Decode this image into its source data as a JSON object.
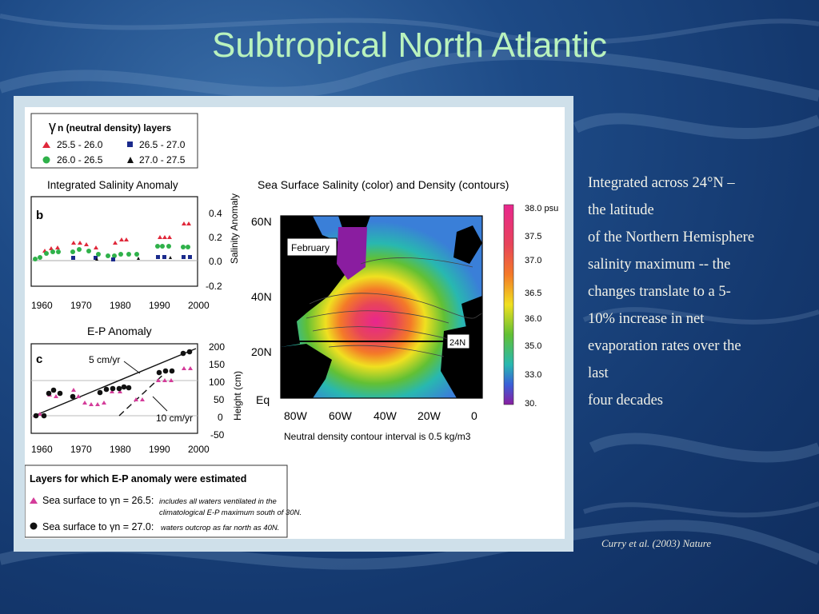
{
  "slide": {
    "title": "Subtropical North Atlantic",
    "side_text": {
      "l1": "Integrated across 24°N –",
      "l2": "the latitude",
      "l3": "of the Northern Hemisphere",
      "l4": "salinity maximum -- the",
      "l5": "changes translate to a 5-",
      "l6": "10% increase in net",
      "l7": "evaporation rates over the",
      "l8": "last",
      "l9": "four decades"
    },
    "citation": "Curry et al. (2003) Nature"
  },
  "figure": {
    "legend": {
      "gamma": "γ",
      "title": "n  (neutral density) layers",
      "items": [
        "25.5 - 26.0",
        "26.5 - 27.0",
        "26.0 - 26.5",
        "27.0 - 27.5"
      ],
      "colors": [
        "#e0283a",
        "#1a2a8c",
        "#2fb14a",
        "#111111"
      ]
    },
    "panel_b": {
      "title": "Integrated Salinity Anomaly",
      "label": "b",
      "yticks": [
        "0.4",
        "0.2",
        "0.0",
        "-0.2"
      ],
      "ylabel": "Salinity Anomaly",
      "xticks": [
        "1960",
        "1970",
        "1980",
        "1990",
        "2000"
      ]
    },
    "panel_c": {
      "title": "E-P Anomaly",
      "label": "c",
      "yticks": [
        "200",
        "150",
        "100",
        "50",
        "0",
        "-50"
      ],
      "ylabel": "Height (cm)",
      "xticks": [
        "1960",
        "1970",
        "1980",
        "1990",
        "2000"
      ],
      "ann_5": "5 cm/yr",
      "ann_10": "10 cm/yr"
    },
    "map": {
      "title": "Sea Surface Salinity (color) and Density (contours)",
      "lat_labels": [
        "60N",
        "40N",
        "20N",
        "Eq"
      ],
      "lon_labels": [
        "80W",
        "60W",
        "40W",
        "20W",
        "0"
      ],
      "month": "February",
      "lat_line_label": "24N",
      "footer": "Neutral density contour interval is 0.5 kg/m3",
      "colorbar": [
        "38.0 psu",
        "37.5",
        "37.0",
        "36.5",
        "36.0",
        "35.0",
        "33.0",
        "30."
      ]
    },
    "layers_box": {
      "title": "Layers for which E-P anomaly were estimated",
      "row1_main": "Sea surface to γn = 26.5:",
      "row1_note_a": "includes all waters ventilated in the",
      "row1_note_b": "climatological E-P maximum south of 30N.",
      "row2_main": "Sea surface to γn = 27.0:",
      "row2_note": "waters outcrop as far north as 40N."
    }
  }
}
